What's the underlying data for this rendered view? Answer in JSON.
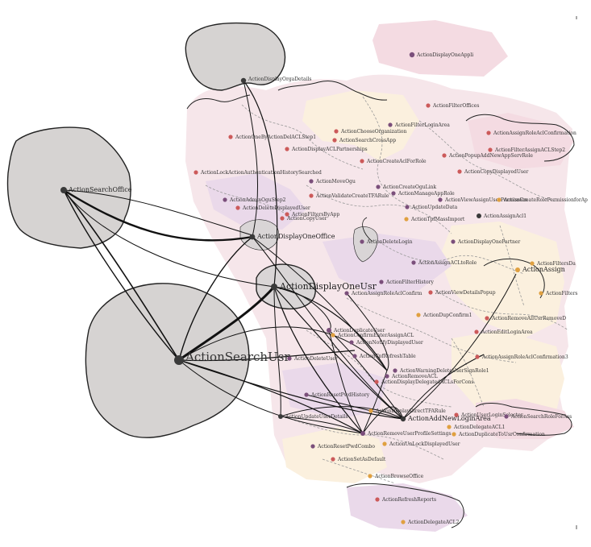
{
  "nodes": [
    {
      "key": "displayOneAppli",
      "label": "ActionDisplayOneAppli",
      "color": "purple"
    },
    {
      "key": "displayOrgaDetails",
      "label": "ActionDisplayOrgaDetails",
      "color": "dark"
    },
    {
      "key": "filterOffices",
      "label": "ActionFilterOffices",
      "color": "red"
    },
    {
      "key": "filterLoginArea",
      "label": "ActionFilterLoginArea",
      "color": "purple"
    },
    {
      "key": "chooseOrganization",
      "label": "ActionChooseOrganization",
      "color": "red"
    },
    {
      "key": "oneByDelACLStep1",
      "label": "ActionOneByActionDelACLStep1",
      "color": "red"
    },
    {
      "key": "searchCrossApp",
      "label": "ActionSearchCrossApp",
      "color": "red"
    },
    {
      "key": "displayACLPartnerships",
      "label": "ActionDisplayACLPartnerships",
      "color": "red"
    },
    {
      "key": "assignRoleAclConfirmation",
      "label": "ActionAssignRoleAclConfirmation",
      "color": "red"
    },
    {
      "key": "filterAssignACLStep2",
      "label": "ActionFilterAssignACLStep2",
      "color": "red"
    },
    {
      "key": "popupAddNewAppServRole",
      "label": "ActionPopupAddNewAppServRole",
      "color": "red"
    },
    {
      "key": "createAclForRole",
      "label": "ActionCreateAclForRole",
      "color": "red"
    },
    {
      "key": "copyDisplayedUser",
      "label": "ActionCopyDisplayedUser",
      "color": "red"
    },
    {
      "key": "searchOffice",
      "label": "ActionSearchOffice",
      "color": "dark"
    },
    {
      "key": "lockAuthHistory",
      "label": "ActionLockActionAuthenticationHistorySearched",
      "color": "red"
    },
    {
      "key": "moveOgu",
      "label": "ActionMoveOgu",
      "color": "purple"
    },
    {
      "key": "createOgu",
      "label": "ActionCreateOguLink",
      "color": "purple"
    },
    {
      "key": "manageAppRole",
      "label": "ActionManageAppRole",
      "color": "purple"
    },
    {
      "key": "viewAssignUserPermission",
      "label": "ActionViewAssignUserPermission",
      "color": "purple"
    },
    {
      "key": "createRolePermission",
      "label": "ActionCreateRolePermissionforAp",
      "color": "orange"
    },
    {
      "key": "adminOguStep2",
      "label": "ActionAdminOguStep2",
      "color": "purple"
    },
    {
      "key": "validateCreateTFARule",
      "label": "ActionValidateCreateTFARule",
      "color": "red"
    },
    {
      "key": "deleteDisplayedUser",
      "label": "ActionDeleteDisplayedUser",
      "color": "red"
    },
    {
      "key": "updateData",
      "label": "ActionUpdateData",
      "color": "purple"
    },
    {
      "key": "filtersByApp",
      "label": "ActionFiltersByApp",
      "color": "red"
    },
    {
      "key": "copyUser",
      "label": "ActionCopyUser",
      "color": "red"
    },
    {
      "key": "tpfMassImport",
      "label": "ActionTpfMassImport",
      "color": "orange"
    },
    {
      "key": "assignAcl1",
      "label": "ActionAssignAcl1",
      "color": "dark"
    },
    {
      "key": "displayOneOffice",
      "label": "ActionDisplayOneOffice",
      "color": "dark"
    },
    {
      "key": "deleteLogin",
      "label": "ActionDeleteLogin",
      "color": "purple"
    },
    {
      "key": "displayOnePartner",
      "label": "ActionDisplayOnePartner",
      "color": "purple"
    },
    {
      "key": "assignACLtoRole",
      "label": "ActionAssignACLtoRole",
      "color": "purple"
    },
    {
      "key": "filtersData",
      "label": "ActionFiltersDa",
      "color": "orange"
    },
    {
      "key": "assign",
      "label": "ActionAssign",
      "color": "orange"
    },
    {
      "key": "filterHistory",
      "label": "ActionFilterHistory",
      "color": "purple"
    },
    {
      "key": "displayOneUsr",
      "label": "ActionDisplayOneUsr",
      "color": "dark"
    },
    {
      "key": "assignRoleAclConfirm",
      "label": "ActionAssignRoleAclConfirm",
      "color": "purple"
    },
    {
      "key": "viewDetailsPopup",
      "label": "ActionViewDetailsPopup",
      "color": "red"
    },
    {
      "key": "filters",
      "label": "ActionFilters",
      "color": "orange"
    },
    {
      "key": "dupConfirm1",
      "label": "ActionDupConfirm1",
      "color": "orange"
    },
    {
      "key": "removeAllRoles",
      "label": "ActionRemoveAllUsrRemoveD",
      "color": "red"
    },
    {
      "key": "duplicateUser",
      "label": "ActionDuplicateUser",
      "color": "purple"
    },
    {
      "key": "confirmAssignACL",
      "label": "ActionConfirmEnterAssignACL",
      "color": "orange"
    },
    {
      "key": "notifyDisplayedUser",
      "label": "ActionNotifyDisplayedUser",
      "color": "purple"
    },
    {
      "key": "editLoginArea",
      "label": "ActionEditLoginArea",
      "color": "red"
    },
    {
      "key": "searchUsr",
      "label": "ActionSearchUsr",
      "color": "dark"
    },
    {
      "key": "deleteUser",
      "label": "ActionDeleteUser",
      "color": "purple"
    },
    {
      "key": "tpfRefreshTable",
      "label": "ActionTpfRefreshTable",
      "color": "purple"
    },
    {
      "key": "assignRoleAclConfirmation3",
      "label": "ActionAssignRoleAclConfirmation3",
      "color": "red"
    },
    {
      "key": "warnDeleteUsr",
      "label": "ActionWarningDeleteUserSignRole1",
      "color": "purple"
    },
    {
      "key": "removeACL",
      "label": "ActionRemoveACL",
      "color": "purple"
    },
    {
      "key": "displayDelegatedACL",
      "label": "ActionDisplayDelegatedACLsForCons",
      "color": "red"
    },
    {
      "key": "resetPwd",
      "label": "ActionResetPwdHistory",
      "color": "purple"
    },
    {
      "key": "updateUserDetails",
      "label": "ActionUpdateUserDetails",
      "color": "dark"
    },
    {
      "key": "displayDirectTFARule",
      "label": "ActionDisplayDirectTFARule",
      "color": "orange"
    },
    {
      "key": "addNewLoginArea",
      "label": "ActionAddNewLoginArea",
      "color": "dark"
    },
    {
      "key": "userLoginSelector",
      "label": "ActionUserLoginSelector",
      "color": "red"
    },
    {
      "key": "searchRoleForAssign",
      "label": "ActionSearchRoleForAss",
      "color": "purple"
    },
    {
      "key": "delegateACL1",
      "label": "ActionDelegateACL1",
      "color": "orange"
    },
    {
      "key": "duplicateToUsrConfirm",
      "label": "ActionDuplicateToUsrConfirmation",
      "color": "orange"
    },
    {
      "key": "removeUserProfile",
      "label": "ActionRemoveUserProfileSettings",
      "color": "purple"
    },
    {
      "key": "unlockDisplayedUser",
      "label": "ActionUnLockDisplayedUser",
      "color": "orange"
    },
    {
      "key": "resetPwdCombo",
      "label": "ActionResetPwdCombo",
      "color": "purple"
    },
    {
      "key": "setAsDefault",
      "label": "ActionSetAsDefault",
      "color": "red"
    },
    {
      "key": "browseOffice",
      "label": "ActionBrowseOffice",
      "color": "orange"
    },
    {
      "key": "refreshReports",
      "label": "ActionRefreshReports",
      "color": "red"
    },
    {
      "key": "delegateACL2",
      "label": "ActionDelegateACL2",
      "color": "orange"
    }
  ],
  "colors": {
    "red": "#cc5a5a",
    "purple": "#7b4f7b",
    "orange": "#e0a040",
    "dark": "#3a3a3a",
    "gray_region": "#d6d3d2",
    "pink_region": "#f4dbe2",
    "cream_region": "#fbf0de",
    "lilac_region": "#ead9ea"
  }
}
